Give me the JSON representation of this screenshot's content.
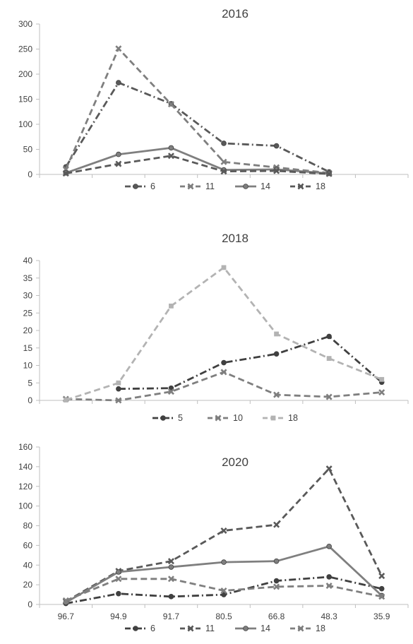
{
  "chart_data": [
    {
      "type": "line",
      "title": "2016",
      "x": [
        "96.7",
        "94.9",
        "91.7",
        "80.5",
        "66.8",
        "48.3",
        "35.9"
      ],
      "ylim": [
        0,
        300
      ],
      "yticks": [
        0,
        50,
        100,
        150,
        200,
        250,
        300
      ],
      "show_x_labels": false,
      "grid": false,
      "legend": "bottom",
      "series": [
        {
          "name": "6",
          "style": "dashdot",
          "marker": "circle",
          "color": "#595959",
          "values": [
            15,
            183,
            141,
            62,
            57,
            5,
            null
          ]
        },
        {
          "name": "11",
          "style": "dash",
          "marker": "x",
          "color": "#7f7f7f",
          "values": [
            10,
            251,
            140,
            25,
            14,
            3,
            null
          ]
        },
        {
          "name": "14",
          "style": "solid",
          "marker": "circle",
          "color": "#7f7f7f",
          "values": [
            3,
            40,
            53,
            9,
            10,
            2,
            null
          ]
        },
        {
          "name": "18",
          "style": "dash",
          "marker": "x",
          "color": "#595959",
          "values": [
            2,
            21,
            37,
            6,
            7,
            1,
            null
          ]
        }
      ]
    },
    {
      "type": "line",
      "title": "2018",
      "x": [
        "96.7",
        "94.9",
        "91.7",
        "80.5",
        "66.8",
        "48.3",
        "35.9"
      ],
      "ylim": [
        0,
        40
      ],
      "yticks": [
        0,
        5,
        10,
        15,
        20,
        25,
        30,
        35,
        40
      ],
      "show_x_labels": false,
      "grid": false,
      "legend": "bottom",
      "series": [
        {
          "name": "5",
          "style": "dashdot",
          "marker": "circle",
          "color": "#404040",
          "values": [
            null,
            3.3,
            3.5,
            10.8,
            13.3,
            18.3,
            5.2
          ]
        },
        {
          "name": "10",
          "style": "dash",
          "marker": "x",
          "color": "#7f7f7f",
          "values": [
            0.4,
            0,
            2.5,
            8.1,
            1.6,
            1.0,
            2.3
          ]
        },
        {
          "name": "18",
          "style": "dash",
          "marker": "square",
          "color": "#b3b3b3",
          "values": [
            0.1,
            5,
            27,
            38,
            19,
            12,
            6
          ]
        }
      ]
    },
    {
      "type": "line",
      "title": "2020",
      "x": [
        "96.7",
        "94.9",
        "91.7",
        "80.5",
        "66.8",
        "48.3",
        "35.9"
      ],
      "ylim": [
        0,
        160
      ],
      "yticks": [
        0,
        20,
        40,
        60,
        80,
        100,
        120,
        140,
        160
      ],
      "show_x_labels": true,
      "grid": false,
      "legend": "bottom",
      "series": [
        {
          "name": "6",
          "style": "dashdot",
          "marker": "circle",
          "color": "#404040",
          "values": [
            1,
            11,
            8,
            10,
            24,
            28,
            16
          ]
        },
        {
          "name": "11",
          "style": "dash",
          "marker": "x",
          "color": "#595959",
          "values": [
            3,
            34,
            44,
            75,
            81,
            138,
            29
          ]
        },
        {
          "name": "14",
          "style": "solid",
          "marker": "circle",
          "color": "#7f7f7f",
          "values": [
            2,
            33,
            38,
            43,
            44,
            59,
            9
          ]
        },
        {
          "name": "18",
          "style": "dash",
          "marker": "x",
          "color": "#7f7f7f",
          "values": [
            4,
            26,
            26,
            14,
            18,
            19,
            8
          ]
        }
      ]
    }
  ]
}
